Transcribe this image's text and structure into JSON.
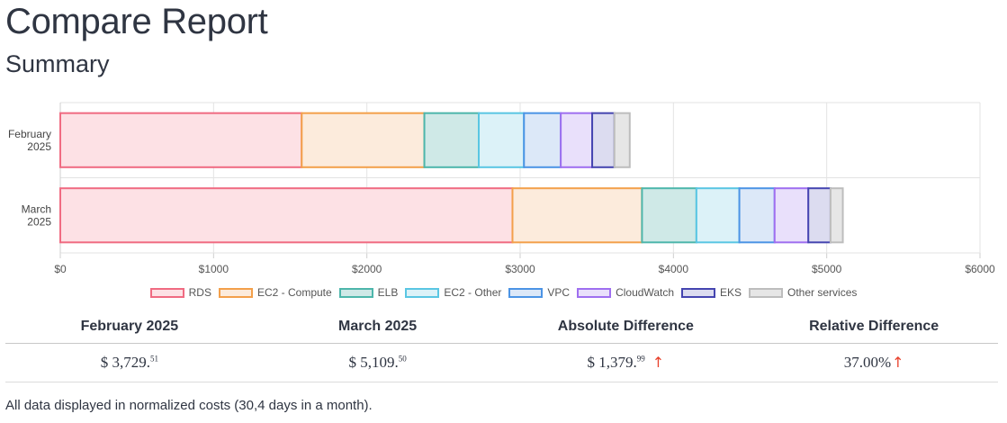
{
  "page": {
    "title": "Compare Report",
    "section_title": "Summary",
    "footnote": "All data displayed in normalized costs (30,4 days in a month)."
  },
  "chart_data": {
    "type": "bar",
    "orientation": "horizontal",
    "stacked": true,
    "categories": [
      [
        "February",
        "2025"
      ],
      [
        "March",
        "2025"
      ]
    ],
    "series": [
      {
        "name": "RDS",
        "values": [
          1575,
          2950
        ],
        "color": "#f06b82",
        "fill": "#fde1e5"
      },
      {
        "name": "EC2 - Compute",
        "values": [
          800,
          845
        ],
        "color": "#f3a04b",
        "fill": "#fcebdc"
      },
      {
        "name": "ELB",
        "values": [
          355,
          355
        ],
        "color": "#4db6ab",
        "fill": "#cfe9e7"
      },
      {
        "name": "EC2 - Other",
        "values": [
          295,
          280
        ],
        "color": "#5ac6e3",
        "fill": "#dcf2f8"
      },
      {
        "name": "VPC",
        "values": [
          240,
          230
        ],
        "color": "#4c94e5",
        "fill": "#dce8f8"
      },
      {
        "name": "CloudWatch",
        "values": [
          205,
          220
        ],
        "color": "#9f6ff0",
        "fill": "#e9e0fb"
      },
      {
        "name": "EKS",
        "values": [
          145,
          145
        ],
        "color": "#4545b0",
        "fill": "#dcdcf0"
      },
      {
        "name": "Other services",
        "values": [
          100,
          80
        ],
        "color": "#bdbdbd",
        "fill": "#e6e6e6"
      }
    ],
    "xlim": [
      0,
      6000
    ],
    "xticks": [
      "$0",
      "$1000",
      "$2000",
      "$3000",
      "$4000",
      "$5000",
      "$6000"
    ],
    "grid": true,
    "legend_position": "bottom"
  },
  "summary": {
    "headers": [
      "February 2025",
      "March 2025",
      "Absolute Difference",
      "Relative Difference"
    ],
    "feb": {
      "currency": "$",
      "int": "3,729.",
      "cents": "51"
    },
    "mar": {
      "currency": "$",
      "int": "5,109.",
      "cents": "50"
    },
    "abs": {
      "currency": "$",
      "int": "1,379.",
      "cents": "99",
      "arrow": "↑"
    },
    "rel": {
      "value": "37.00%",
      "arrow": "↑"
    }
  }
}
